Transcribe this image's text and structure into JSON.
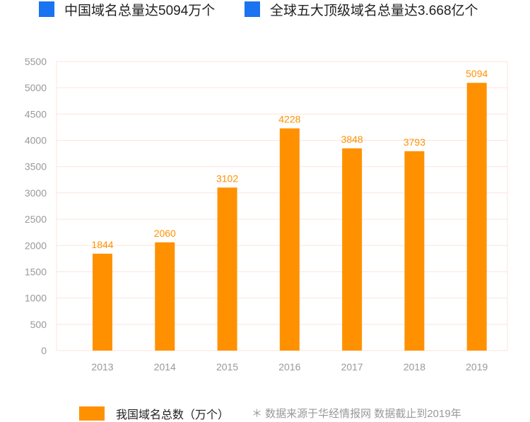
{
  "headline": {
    "left": "中国域名总量达5094万个",
    "right": "全球五大顶级域名总量达3.668亿个"
  },
  "colors": {
    "bar": "#ff9100",
    "label": "#ff9100",
    "grid": "#fde3dd",
    "axis_text": "#999999",
    "headline_square": "#1a73f0"
  },
  "chart_data": {
    "type": "bar",
    "categories": [
      "2013",
      "2014",
      "2015",
      "2016",
      "2017",
      "2018",
      "2019"
    ],
    "series": [
      {
        "name": "我国域名总数（万个）",
        "values": [
          1844,
          2060,
          3102,
          4228,
          3848,
          3793,
          5094
        ]
      }
    ],
    "data_labels": [
      "1844",
      "2060",
      "3102",
      "4228",
      "3848",
      "3793",
      "5094"
    ],
    "y_ticks": [
      "0",
      "500",
      "1000",
      "1500",
      "2000",
      "2500",
      "3000",
      "3500",
      "4000",
      "4500",
      "5000",
      "5500"
    ],
    "ylim": [
      0,
      5500
    ],
    "grid": true,
    "legend_position": "bottom-left",
    "title": "",
    "xlabel": "",
    "ylabel": ""
  },
  "footnote": "＊ 数据来源于华经情报网  数据截止到2019年"
}
